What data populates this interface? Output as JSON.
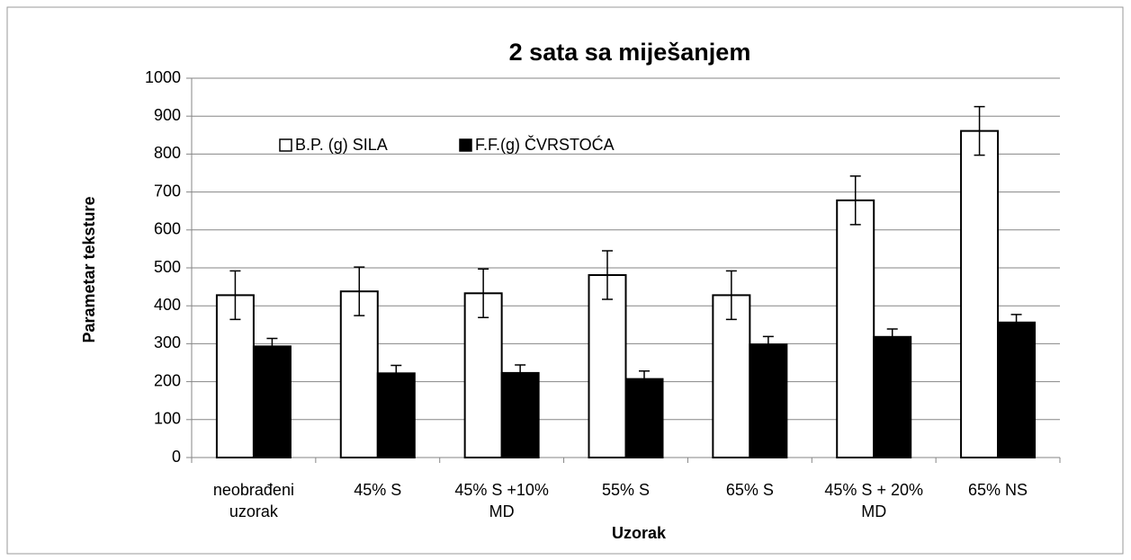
{
  "chart_data": {
    "type": "bar",
    "title": "2 sata  sa miješanjem",
    "x_label": "Uzorak",
    "y_label": "Parametar teksture",
    "categories": [
      "neobrađeni uzorak",
      "45% S",
      "45% S +10% MD",
      "55% S",
      "65% S",
      "45% S + 20% MD",
      "65% NS"
    ],
    "series": [
      {
        "name": "B.P. (g) SILA",
        "color": "#ffffff",
        "values": [
          428,
          438,
          433,
          481,
          428,
          678,
          861
        ],
        "errors": [
          64,
          64,
          64,
          64,
          64,
          64,
          64
        ]
      },
      {
        "name": "F.F.(g) ČVRSTOĆA",
        "color": "#000000",
        "values": [
          293,
          222,
          223,
          207,
          298,
          318,
          356
        ],
        "errors": [
          21,
          21,
          21,
          21,
          21,
          21,
          21
        ]
      }
    ],
    "ylim": [
      0,
      1000
    ],
    "yticks": [
      0,
      100,
      200,
      300,
      400,
      500,
      600,
      700,
      800,
      900,
      1000
    ],
    "grid": true
  }
}
